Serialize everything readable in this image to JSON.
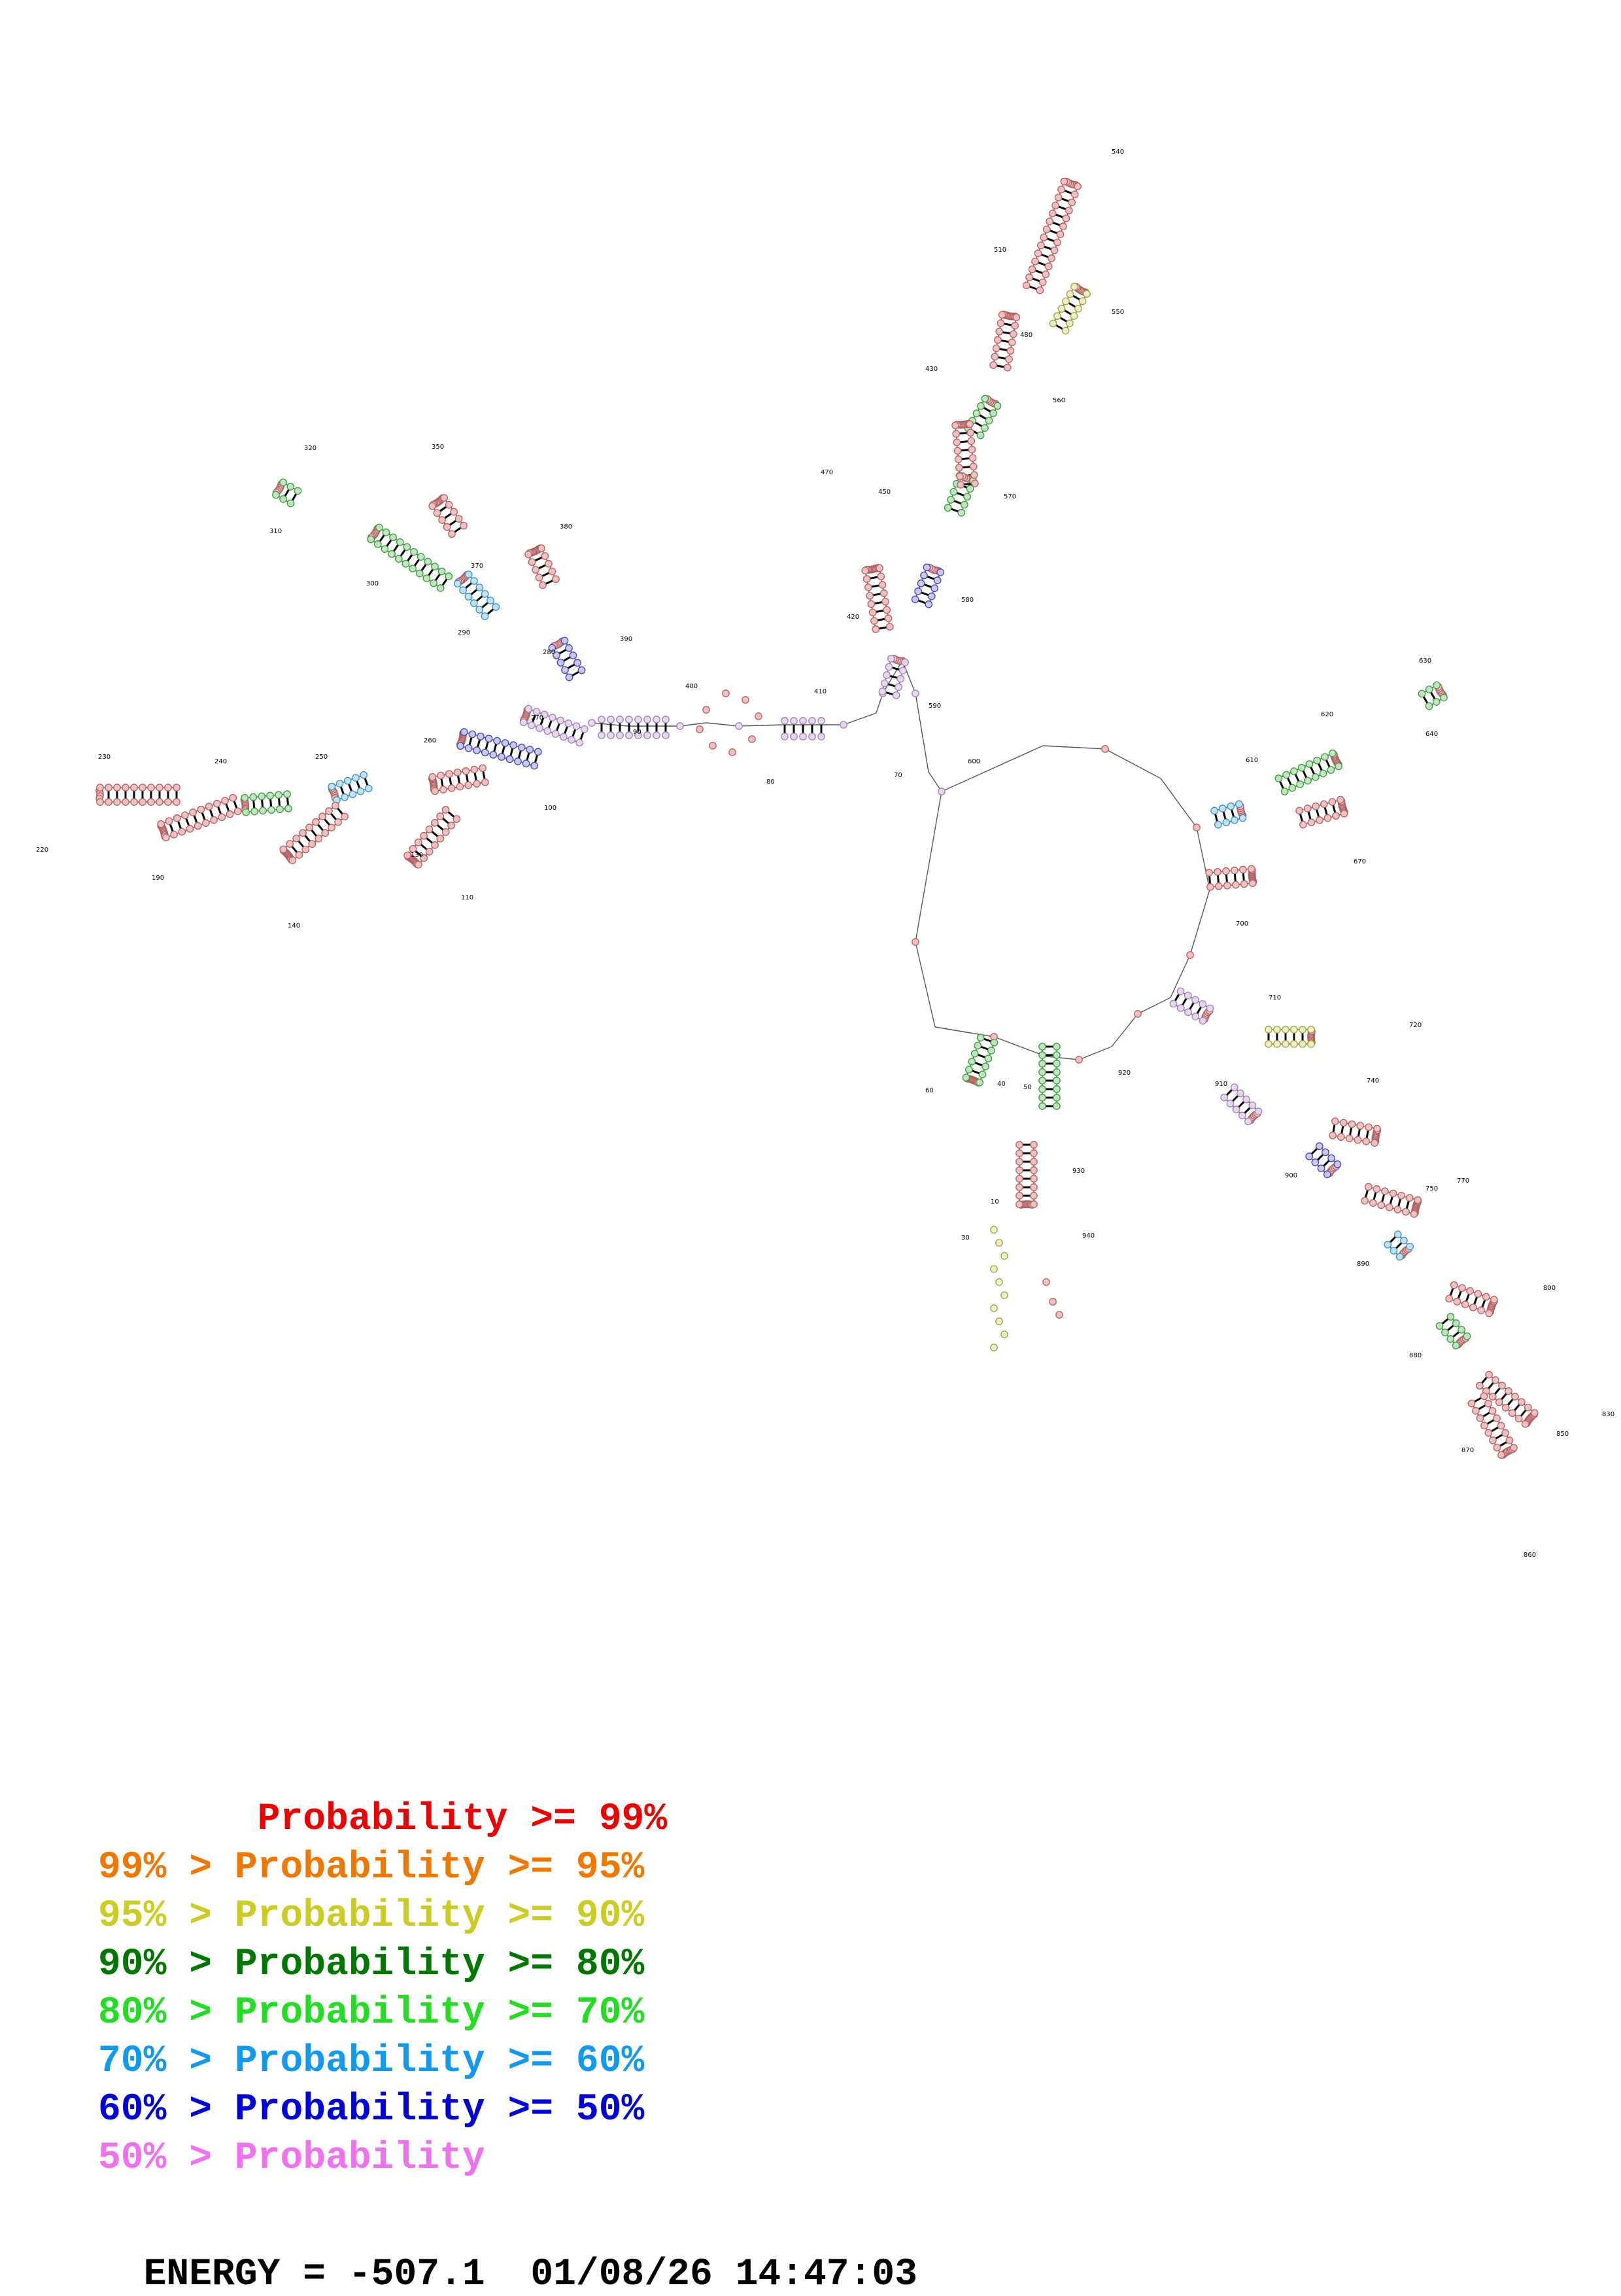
{
  "structure": {
    "position_labels": [
      "10",
      "30",
      "40",
      "50",
      "60",
      "70",
      "80",
      "90",
      "100",
      "110",
      "130",
      "140",
      "190",
      "220",
      "230",
      "240",
      "250",
      "260",
      "270",
      "280",
      "290",
      "300",
      "310",
      "320",
      "350",
      "370",
      "380",
      "390",
      "400",
      "410",
      "420",
      "430",
      "450",
      "470",
      "480",
      "510",
      "540",
      "550",
      "560",
      "570",
      "580",
      "590",
      "600",
      "610",
      "620",
      "630",
      "640",
      "670",
      "700",
      "710",
      "720",
      "740",
      "750",
      "770",
      "800",
      "830",
      "850",
      "860",
      "870",
      "880",
      "890",
      "900",
      "910",
      "920",
      "930",
      "940"
    ]
  },
  "legend": [
    {
      "text": "       Probability >= 99%",
      "color": "#ee0000"
    },
    {
      "text": "99% > Probability >= 95%",
      "color": "#f07800"
    },
    {
      "text": "95% > Probability >= 90%",
      "color": "#cccc22"
    },
    {
      "text": "90% > Probability >= 80%",
      "color": "#007700"
    },
    {
      "text": "80% > Probability >= 70%",
      "color": "#22dd22"
    },
    {
      "text": "70% > Probability >= 60%",
      "color": "#1199ee"
    },
    {
      "text": "60% > Probability >= 50%",
      "color": "#0000dd"
    },
    {
      "text": "50% > Probability",
      "color": "#f070f0"
    }
  ],
  "footer": {
    "energy": "ENERGY = -507.1  01/08/26 14:47:03"
  }
}
